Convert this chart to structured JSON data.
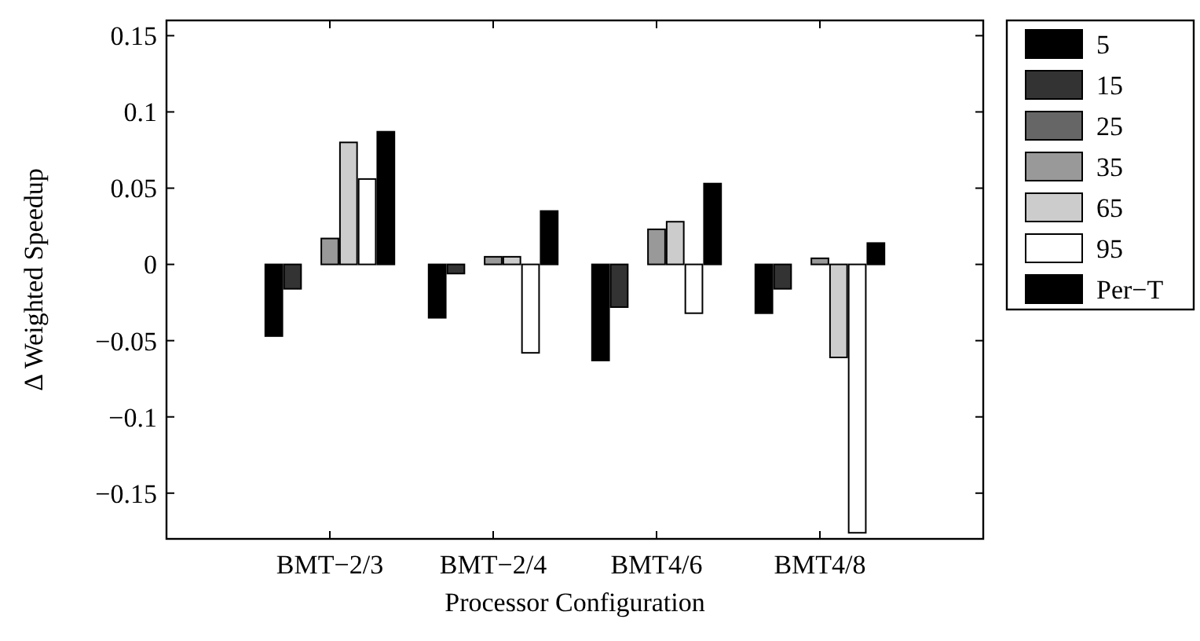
{
  "chart_data": {
    "type": "bar",
    "xlabel": "Processor Configuration",
    "ylabel": "Δ Weighted Speedup",
    "categories": [
      "BMT−2/3",
      "BMT−2/4",
      "BMT4/6",
      "BMT4/8"
    ],
    "series": [
      {
        "name": "5",
        "color": "#000000",
        "values": [
          -0.047,
          -0.035,
          -0.063,
          -0.032
        ]
      },
      {
        "name": "15",
        "color": "#333333",
        "values": [
          -0.016,
          -0.006,
          -0.028,
          -0.016
        ]
      },
      {
        "name": "25",
        "color": "#666666",
        "values": [
          0,
          0,
          0,
          0
        ]
      },
      {
        "name": "35",
        "color": "#999999",
        "values": [
          0.017,
          0.005,
          0.023,
          0.004
        ]
      },
      {
        "name": "65",
        "color": "#cccccc",
        "values": [
          0.08,
          0.005,
          0.028,
          -0.061
        ]
      },
      {
        "name": "95",
        "color": "#ffffff",
        "values": [
          0.056,
          -0.058,
          -0.032,
          -0.176
        ]
      },
      {
        "name": "Per−T",
        "color": "#000000",
        "values": [
          0.087,
          0.035,
          0.053,
          0.014
        ]
      }
    ],
    "ylim": [
      -0.18,
      0.16
    ],
    "yticks": [
      {
        "value": -0.15,
        "label": "−0.15"
      },
      {
        "value": -0.1,
        "label": "−0.1"
      },
      {
        "value": -0.05,
        "label": "−0.05"
      },
      0,
      0.05,
      0.1,
      0.15
    ],
    "grid": false,
    "legend": "top right"
  }
}
